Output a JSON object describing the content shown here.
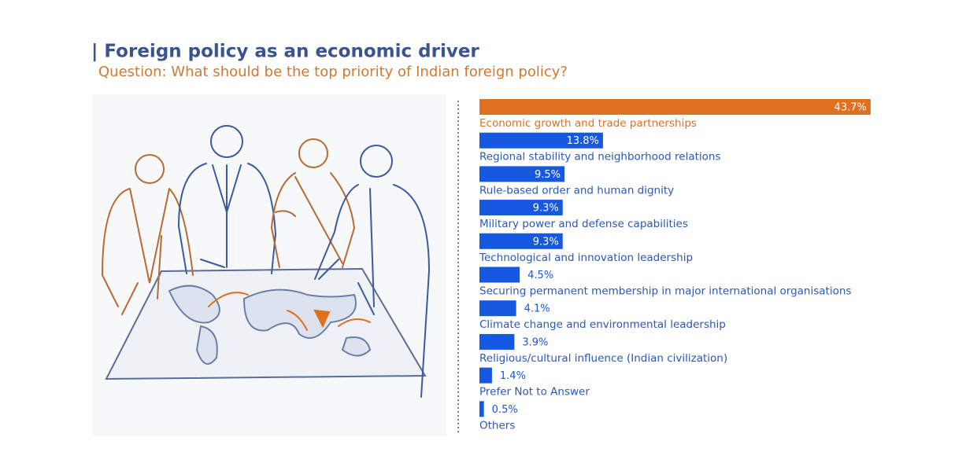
{
  "chart_data": {
    "type": "bar",
    "orientation": "horizontal",
    "title": "| Foreign policy as an economic driver",
    "subtitle": "Question: What should be the top priority of Indian foreign policy?",
    "categories": [
      "Economic growth and trade partnerships",
      "Regional stability and neighborhood relations",
      "Rule-based order and human dignity",
      "Military power and defense capabilities",
      "Technological and innovation leadership",
      "Securing permanent membership in major international organisations",
      "Climate change and environmental leadership",
      "Religious/cultural influence (Indian civilization)",
      "Prefer Not to Answer",
      "Others"
    ],
    "values": [
      43.7,
      13.8,
      9.5,
      9.3,
      9.3,
      4.5,
      4.1,
      3.9,
      1.4,
      0.5
    ],
    "value_labels": [
      "43.7%",
      "13.8%",
      "9.5%",
      "9.3%",
      "9.3%",
      "4.5%",
      "4.1%",
      "3.9%",
      "1.4%",
      "0.5%"
    ],
    "colors": [
      "#e0701f",
      "#1658e0",
      "#1658e0",
      "#1658e0",
      "#1658e0",
      "#1658e0",
      "#1658e0",
      "#1658e0",
      "#1658e0",
      "#1658e0"
    ]
  }
}
